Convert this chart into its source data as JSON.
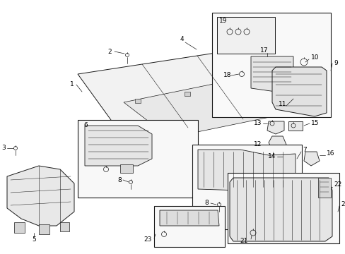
{
  "bg": "#ffffff",
  "lc": "#1a1a1a",
  "tc": "#000000",
  "figsize": [
    4.89,
    3.6
  ],
  "dpi": 100
}
